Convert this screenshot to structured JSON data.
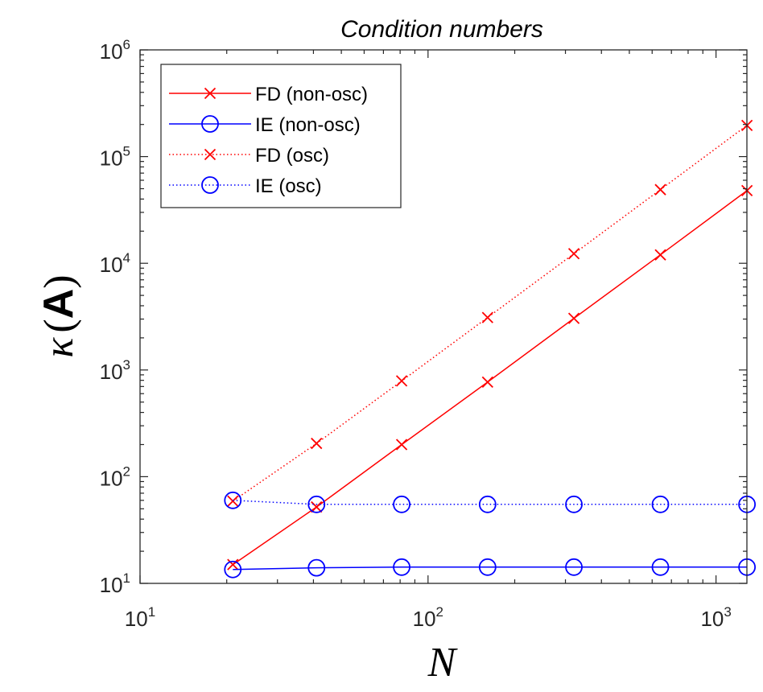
{
  "chart_data": {
    "type": "line",
    "title": "Condition numbers",
    "xlabel": "N",
    "ylabel": {
      "prefix": "κ",
      "open": "(",
      "symbol": "A",
      "close": ")"
    },
    "xscale": "log",
    "yscale": "log",
    "xlim": [
      10,
      1280
    ],
    "ylim": [
      10,
      1000000
    ],
    "grid": false,
    "legend_position": "top-left",
    "x_ticks": [
      {
        "value": 10,
        "base": "10",
        "exp": "1"
      },
      {
        "value": 100,
        "base": "10",
        "exp": "2"
      },
      {
        "value": 1000,
        "base": "10",
        "exp": "3"
      }
    ],
    "y_ticks": [
      {
        "value": 10,
        "base": "10",
        "exp": "1"
      },
      {
        "value": 100,
        "base": "10",
        "exp": "2"
      },
      {
        "value": 1000,
        "base": "10",
        "exp": "3"
      },
      {
        "value": 10000,
        "base": "10",
        "exp": "4"
      },
      {
        "value": 100000,
        "base": "10",
        "exp": "5"
      },
      {
        "value": 1000000,
        "base": "10",
        "exp": "6"
      }
    ],
    "series": [
      {
        "name": "FD (non-osc)",
        "color": "#ff0000",
        "style": "solid",
        "marker": "x",
        "x": [
          21,
          41,
          81,
          161,
          321,
          641,
          1281
        ],
        "y": [
          15,
          52,
          200,
          770,
          3050,
          12000,
          48000
        ]
      },
      {
        "name": "IE (non-osc)",
        "color": "#0000ff",
        "style": "solid",
        "marker": "o",
        "x": [
          21,
          41,
          81,
          161,
          321,
          641,
          1281
        ],
        "y": [
          13.5,
          14,
          14.2,
          14.2,
          14.2,
          14.2,
          14.2
        ]
      },
      {
        "name": "FD (osc)",
        "color": "#ff0000",
        "style": "dotted",
        "marker": "x",
        "x": [
          21,
          41,
          81,
          161,
          321,
          641,
          1281
        ],
        "y": [
          59,
          205,
          790,
          3100,
          12300,
          49000,
          196000
        ]
      },
      {
        "name": "IE (osc)",
        "color": "#0000ff",
        "style": "dotted",
        "marker": "o",
        "x": [
          21,
          41,
          81,
          161,
          321,
          641,
          1281
        ],
        "y": [
          60,
          55,
          55,
          55,
          55,
          55,
          55
        ]
      }
    ]
  }
}
